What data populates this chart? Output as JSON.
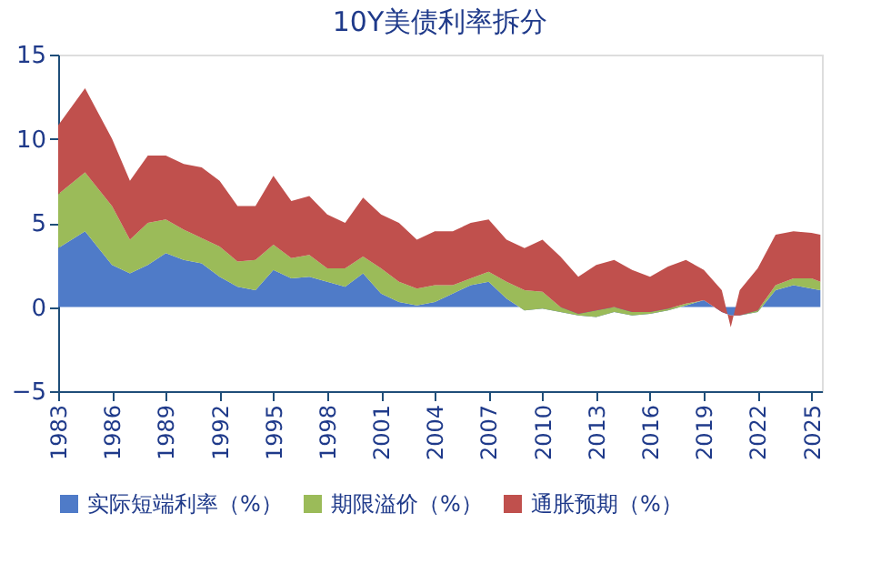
{
  "chart_data": {
    "type": "area",
    "stacked": true,
    "title": "10Y美债利率拆分",
    "x": [
      "1983-01",
      "1984-07",
      "1986-01",
      "1987-01",
      "1988-01",
      "1989-01",
      "1990-01",
      "1991-01",
      "1992-01",
      "1993-01",
      "1994-01",
      "1995-01",
      "1996-01",
      "1997-01",
      "1998-01",
      "1999-01",
      "2000-01",
      "2001-01",
      "2002-01",
      "2003-01",
      "2004-01",
      "2005-01",
      "2006-01",
      "2007-01",
      "2008-01",
      "2009-01",
      "2010-01",
      "2011-01",
      "2012-01",
      "2013-01",
      "2014-01",
      "2015-01",
      "2016-01",
      "2017-01",
      "2018-01",
      "2019-01",
      "2020-01",
      "2020-07",
      "2021-01",
      "2022-01",
      "2023-01",
      "2024-01",
      "2025-01",
      "2025-07"
    ],
    "series": [
      {
        "name": "实际短端利率（%）",
        "color": "#4f7bc8",
        "values": [
          3.5,
          4.5,
          2.5,
          2.0,
          2.5,
          3.2,
          2.8,
          2.6,
          1.8,
          1.2,
          1.0,
          2.2,
          1.7,
          1.8,
          1.5,
          1.2,
          2.0,
          0.8,
          0.3,
          0.1,
          0.3,
          0.8,
          1.3,
          1.5,
          0.5,
          -0.2,
          -0.1,
          -0.3,
          -0.5,
          -0.6,
          -0.3,
          -0.5,
          -0.4,
          -0.2,
          0.1,
          0.4,
          -0.3,
          -0.5,
          -0.5,
          -0.3,
          1.0,
          1.3,
          1.1,
          1.0
        ]
      },
      {
        "name": "期限溢价（%）",
        "color": "#9bbb59",
        "values": [
          3.2,
          3.5,
          3.5,
          2.0,
          2.5,
          2.0,
          1.8,
          1.5,
          1.8,
          1.5,
          1.8,
          1.5,
          1.2,
          1.3,
          0.8,
          1.1,
          1.0,
          1.5,
          1.2,
          1.0,
          1.0,
          0.5,
          0.4,
          0.6,
          1.0,
          1.2,
          1.0,
          0.3,
          0.1,
          0.4,
          0.3,
          0.2,
          0.1,
          0.1,
          0.1,
          0.0,
          0.0,
          0.0,
          0.0,
          0.1,
          0.3,
          0.4,
          0.6,
          0.5
        ]
      },
      {
        "name": "通胀预期（%）",
        "color": "#c0504d",
        "values": [
          4.1,
          5.0,
          4.0,
          3.5,
          4.0,
          3.8,
          3.9,
          4.2,
          3.9,
          3.3,
          3.2,
          4.1,
          3.4,
          3.5,
          3.2,
          2.7,
          3.5,
          3.2,
          3.5,
          2.9,
          3.2,
          3.2,
          3.3,
          3.1,
          2.5,
          2.5,
          3.1,
          3.0,
          2.2,
          2.7,
          2.8,
          2.5,
          2.1,
          2.5,
          2.6,
          1.8,
          1.3,
          -0.7,
          1.5,
          2.5,
          3.0,
          2.8,
          2.7,
          2.8
        ]
      }
    ],
    "xlim": [
      "1983-01",
      "2025-08"
    ],
    "xticks": [
      "1983",
      "1986",
      "1989",
      "1992",
      "1995",
      "1998",
      "2001",
      "2004",
      "2007",
      "2010",
      "2013",
      "2016",
      "2019",
      "2022",
      "2025"
    ],
    "ylim": [
      -5,
      15
    ],
    "yticks": [
      -5,
      0,
      5,
      10,
      15
    ],
    "grid": false,
    "legend": "bottom"
  }
}
